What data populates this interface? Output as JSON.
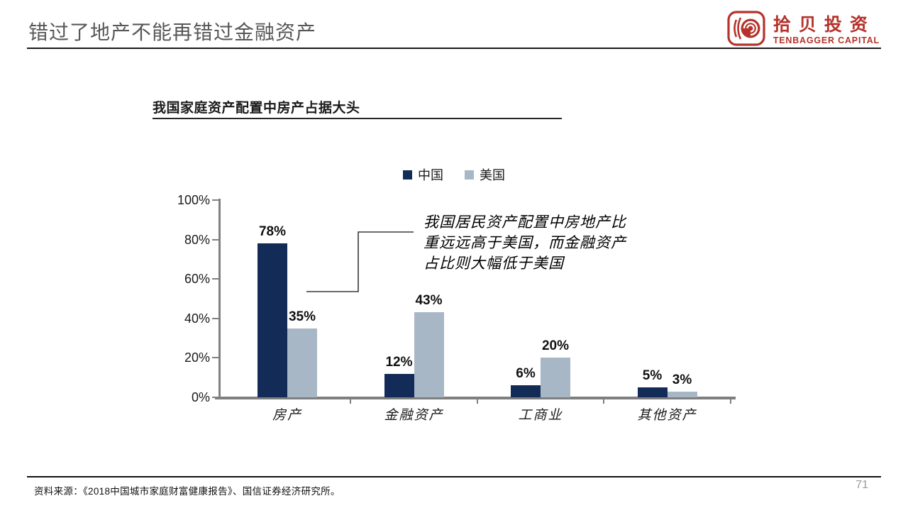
{
  "header": {
    "title": "错过了地产不能再错过金融资产",
    "logo": {
      "name_cn": "拾贝投资",
      "name_en": "TENBAGGER CAPITAL",
      "brand_color": "#B5332B"
    }
  },
  "chart": {
    "title": "我国家庭资产配置中房产占据大头",
    "annotation": {
      "lines": [
        "我国居民资产配置中房地产比",
        "重远远高于美国，而金融资产",
        "占比则大幅低于美国"
      ]
    }
  },
  "chart_data": {
    "type": "bar",
    "title": "我国家庭资产配置中房产占据大头",
    "categories": [
      "房产",
      "金融资产",
      "工商业",
      "其他资产"
    ],
    "series": [
      {
        "name": "中国",
        "color": "#122B57",
        "values": [
          78,
          12,
          6,
          5
        ]
      },
      {
        "name": "美国",
        "color": "#A8B7C6",
        "values": [
          35,
          43,
          20,
          3
        ]
      }
    ],
    "value_suffix": "%",
    "y_ticks": [
      "0%",
      "20%",
      "40%",
      "60%",
      "80%",
      "100%"
    ],
    "ylim": [
      0,
      100
    ],
    "grid": false,
    "legend_position": "top",
    "axis_color": "#808080",
    "annotation_text": "我国居民资产配置中房地产比重远远高于美国，而金融资产占比则大幅低于美国"
  },
  "footer": {
    "source": "资料来源：《2018中国城市家庭财富健康报告》、国信证券经济研究所。",
    "page_number": "71"
  }
}
